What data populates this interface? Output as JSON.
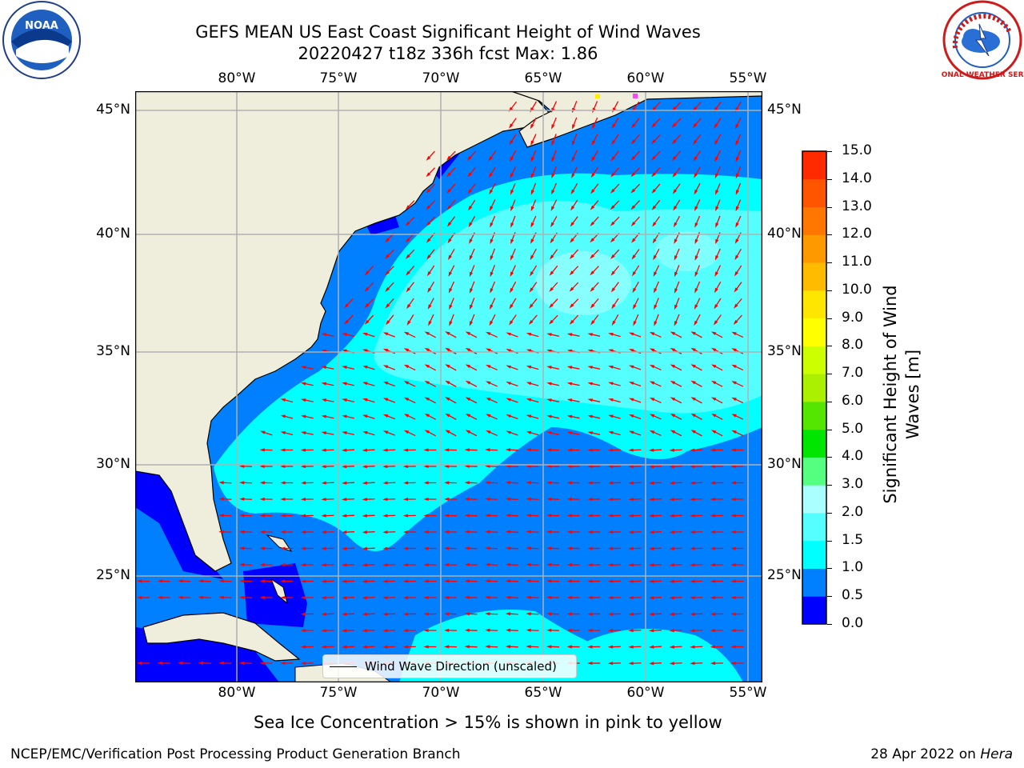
{
  "title_line1": "GEFS MEAN US East Coast Significant Height of Wind Waves",
  "title_line2": "20220427 t18z 336h fcst   Max: 1.86",
  "longitude_ticks": [
    "80°W",
    "75°W",
    "70°W",
    "65°W",
    "60°W",
    "55°W"
  ],
  "latitude_ticks": [
    "45°N",
    "40°N",
    "35°N",
    "30°N",
    "25°N"
  ],
  "colorbar": {
    "label_line1": "Significant Height of Wind",
    "label_line2": "Waves [m]",
    "ticks": [
      "15.0",
      "14.0",
      "13.0",
      "12.0",
      "11.0",
      "10.0",
      "9.0",
      "8.0",
      "7.0",
      "6.0",
      "5.0",
      "4.0",
      "3.0",
      "2.0",
      "1.5",
      "1.0",
      "0.5",
      "0.0"
    ],
    "bounds": [
      0,
      0.5,
      1,
      1.5,
      2,
      3,
      4,
      5,
      6,
      7,
      8,
      9,
      10,
      11,
      12,
      13,
      14,
      15
    ],
    "colors": [
      "#0000ff",
      "#0080ff",
      "#00ffff",
      "#55ffff",
      "#aaffff",
      "#55ff7f",
      "#00e600",
      "#55e600",
      "#aaf000",
      "#ccff00",
      "#ffff00",
      "#ffe600",
      "#ffbb00",
      "#ff9900",
      "#ff7700",
      "#ff5500",
      "#ff2a00"
    ]
  },
  "legend_label": "Wind Wave Direction (unscaled)",
  "caption": "Sea Ice Concentration > 15% is shown in pink to yellow",
  "footer_left": "NCEP/EMC/Verification Post Processing Product Generation Branch",
  "footer_right_date": "28 Apr 2022 on ",
  "footer_right_host": "Hera",
  "logo_left_text": "NOAA",
  "logo_right_text": "NATIONAL WEATHER SERVICE",
  "colors": {
    "land": "#efeddc",
    "arrow": "#ff0000",
    "grid": "#b0b0b0"
  }
}
